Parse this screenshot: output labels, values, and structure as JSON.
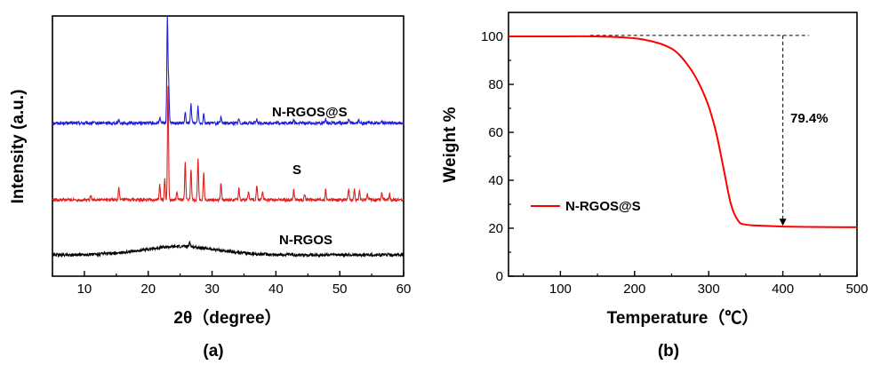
{
  "chart_data": [
    {
      "type": "line",
      "panel_label": "(a)",
      "xlabel": "2θ（degree）",
      "ylabel": "Intensity (a.u.)",
      "xlim": [
        5,
        60
      ],
      "x_ticks": [
        "10",
        "20",
        "30",
        "40",
        "50",
        "60"
      ],
      "y_ticks": [],
      "colors": {
        "N-RGOS@S": "#1f1fe0",
        "S": "#e01f1f",
        "N-RGOS": "#000000"
      },
      "series": [
        {
          "name": "N-RGOS@S",
          "baseline": 0.06,
          "peaks": [
            [
              15.4,
              0.02
            ],
            [
              21.8,
              0.03
            ],
            [
              23.0,
              0.62
            ],
            [
              23.2,
              0.22
            ],
            [
              25.8,
              0.06
            ],
            [
              26.7,
              0.12
            ],
            [
              27.8,
              0.1
            ],
            [
              28.7,
              0.06
            ],
            [
              31.4,
              0.03
            ],
            [
              34.2,
              0.025
            ],
            [
              37.0,
              0.02
            ],
            [
              42.8,
              0.02
            ],
            [
              47.8,
              0.02
            ],
            [
              51.4,
              0.02
            ],
            [
              53.0,
              0.02
            ],
            [
              56.6,
              0.015
            ]
          ]
        },
        {
          "name": "S",
          "baseline": 0.0,
          "peaks": [
            [
              11.0,
              0.03
            ],
            [
              15.4,
              0.07
            ],
            [
              21.8,
              0.09
            ],
            [
              22.6,
              0.12
            ],
            [
              23.1,
              0.68
            ],
            [
              24.5,
              0.05
            ],
            [
              25.8,
              0.22
            ],
            [
              26.7,
              0.18
            ],
            [
              27.8,
              0.25
            ],
            [
              28.7,
              0.16
            ],
            [
              31.4,
              0.1
            ],
            [
              34.2,
              0.07
            ],
            [
              35.7,
              0.05
            ],
            [
              37.0,
              0.09
            ],
            [
              37.9,
              0.05
            ],
            [
              42.8,
              0.06
            ],
            [
              44.5,
              0.03
            ],
            [
              47.8,
              0.06
            ],
            [
              51.4,
              0.07
            ],
            [
              52.3,
              0.06
            ],
            [
              53.1,
              0.05
            ],
            [
              54.3,
              0.04
            ],
            [
              56.6,
              0.04
            ],
            [
              57.8,
              0.03
            ]
          ]
        },
        {
          "name": "N-RGOS",
          "baseline": 0.0,
          "broad_hump": {
            "center": 25.0,
            "height": 0.05,
            "width": 8.0
          },
          "peaks": [
            [
              26.5,
              0.035
            ]
          ]
        }
      ]
    },
    {
      "type": "line",
      "panel_label": "(b)",
      "xlabel": "Temperature（℃）",
      "ylabel": "Weight %",
      "xlim": [
        30,
        500
      ],
      "ylim": [
        0,
        110
      ],
      "x_ticks": [
        "100",
        "200",
        "300",
        "400",
        "500"
      ],
      "y_ticks": [
        "0",
        "20",
        "40",
        "60",
        "80",
        "100"
      ],
      "legend": "left-center",
      "series": [
        {
          "name": "N-RGOS@S",
          "color": "#ff0000",
          "x": [
            30,
            100,
            150,
            200,
            230,
            250,
            260,
            270,
            280,
            290,
            300,
            310,
            320,
            330,
            340,
            350,
            375,
            400,
            450,
            500
          ],
          "y": [
            100,
            100,
            100,
            99.2,
            97.4,
            94.9,
            92.4,
            88.8,
            84.3,
            78.4,
            70.8,
            60.0,
            45.0,
            30.0,
            23.0,
            21.5,
            21.0,
            20.7,
            20.5,
            20.4
          ]
        }
      ],
      "annotation": {
        "text": "79.4%",
        "arrow_x": 400,
        "from_y": 100.4,
        "to_y": 21.0,
        "dashed_from_x": 140,
        "dashed_to_x": 435
      }
    }
  ]
}
